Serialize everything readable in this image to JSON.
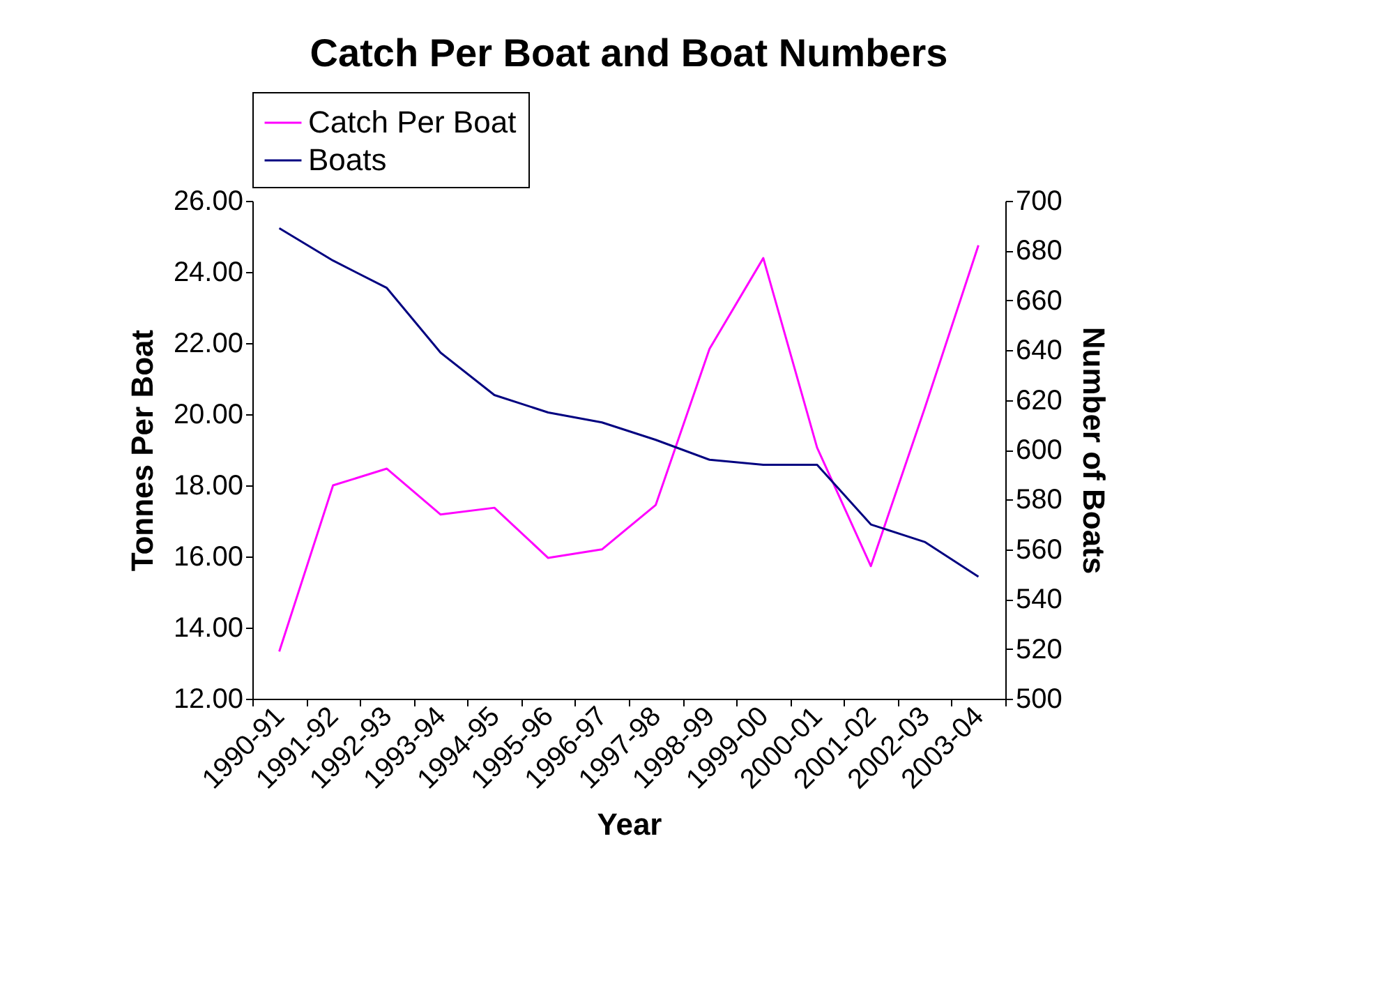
{
  "chart_data": {
    "type": "line",
    "title": "Catch Per Boat and Boat Numbers",
    "xlabel": "Year",
    "ylabel": "Tonnes Per Boat",
    "y2label": "Number of Boats",
    "categories": [
      "1990-91",
      "1991-92",
      "1992-93",
      "1993-94",
      "1994-95",
      "1995-96",
      "1996-97",
      "1997-98",
      "1998-99",
      "1999-00",
      "2000-01",
      "2001-02",
      "2002-03",
      "2003-04"
    ],
    "series": [
      {
        "name": "Catch Per Boat",
        "color": "#ff00ff",
        "values": [
          13.33,
          18.0,
          18.47,
          17.18,
          17.37,
          15.96,
          16.2,
          17.45,
          21.84,
          24.39,
          19.06,
          15.73,
          20.16,
          24.75
        ]
      },
      {
        "name": "Boats",
        "color": "#000080",
        "axis": "y2",
        "values": [
          689,
          676,
          665,
          639,
          622,
          615,
          611,
          604,
          596,
          594,
          594,
          570,
          563,
          549
        ]
      }
    ],
    "ylim": [
      12,
      26
    ],
    "yticks": [
      {
        "value": 12,
        "label": "12.00"
      },
      {
        "value": 14,
        "label": "14.00"
      },
      {
        "value": 16,
        "label": "16.00"
      },
      {
        "value": 18,
        "label": "18.00"
      },
      {
        "value": 20,
        "label": "20.00"
      },
      {
        "value": 22,
        "label": "22.00"
      },
      {
        "value": 24,
        "label": "24.00"
      },
      {
        "value": 26,
        "label": "26.00"
      }
    ],
    "y2lim": [
      500,
      700
    ],
    "y2ticks": [
      500,
      520,
      540,
      560,
      580,
      600,
      620,
      640,
      660,
      680,
      700
    ],
    "grid": false,
    "legend": "top",
    "line_style": "solid"
  }
}
